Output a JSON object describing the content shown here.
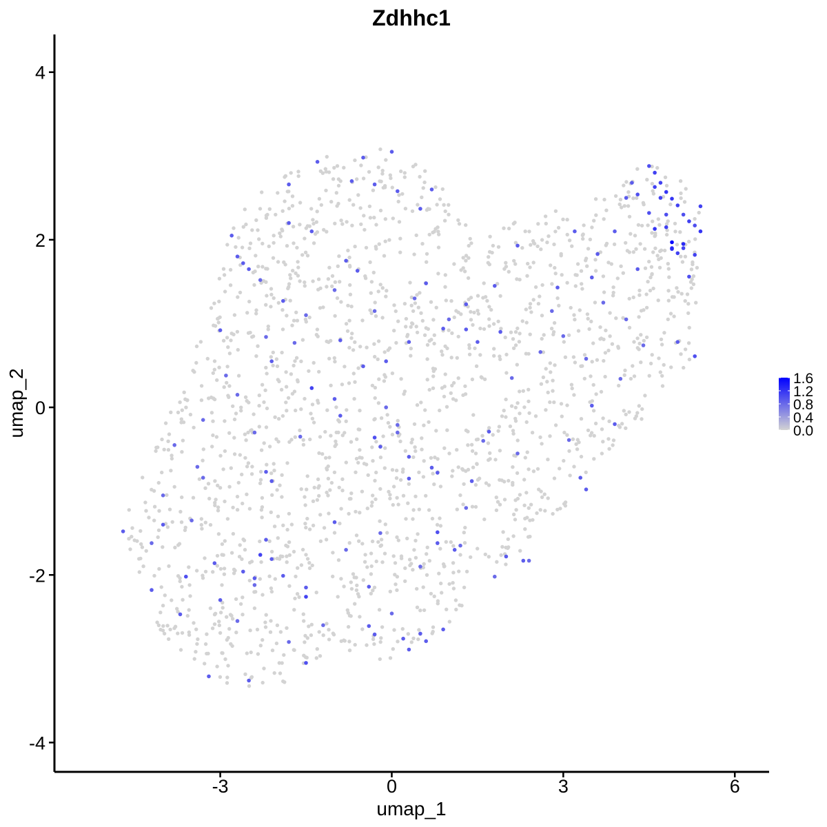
{
  "chart_data": {
    "type": "scatter",
    "title": "Zdhhc1",
    "xlabel": "umap_1",
    "ylabel": "umap_2",
    "xlim": [
      -5.9,
      6.6
    ],
    "ylim": [
      -4.35,
      4.45
    ],
    "x_ticks": [
      -3,
      0,
      3,
      6
    ],
    "y_ticks": [
      -4,
      -2,
      0,
      2,
      4
    ],
    "x_tick_labels": [
      "-3",
      "0",
      "3",
      "6"
    ],
    "y_tick_labels": [
      "-4",
      "-2",
      "0",
      "2",
      "4"
    ],
    "grid": false,
    "legend": {
      "position": "right",
      "type": "colorbar",
      "min": 0.0,
      "max": 1.6,
      "ticks": [
        0.0,
        0.4,
        0.8,
        1.2,
        1.6
      ],
      "tick_labels": [
        "0.0",
        "0.4",
        "0.8",
        "1.2",
        "1.6"
      ],
      "color_low": "#d3d3d3",
      "color_high": "#0000ff"
    },
    "colors": {
      "low": "#d3d3d3",
      "high": "#0000ff"
    },
    "expressed_points": [
      [
        -4.7,
        -1.48,
        0.9
      ],
      [
        -4.2,
        -2.18,
        0.9
      ],
      [
        -3.6,
        -2.02,
        1.0
      ],
      [
        -3.7,
        -2.47,
        0.9
      ],
      [
        -3.2,
        -3.21,
        0.9
      ],
      [
        -3.4,
        -0.71,
        0.8
      ],
      [
        -3.3,
        -0.84,
        0.8
      ],
      [
        -3.1,
        -1.86,
        0.9
      ],
      [
        -2.6,
        -1.96,
        0.9
      ],
      [
        -2.3,
        -1.76,
        1.1
      ],
      [
        -2.2,
        -1.58,
        0.9
      ],
      [
        -2.1,
        -1.81,
        0.9
      ],
      [
        -2.4,
        -2.04,
        0.9
      ],
      [
        -2.4,
        -2.12,
        0.8
      ],
      [
        -2.5,
        -3.26,
        0.9
      ],
      [
        -1.5,
        -2.26,
        1.1
      ],
      [
        -1.5,
        -2.15,
        0.9
      ],
      [
        -1.5,
        -3.05,
        1.0
      ],
      [
        -1.9,
        -2.01,
        0.9
      ],
      [
        -3.0,
        0.92,
        0.9
      ],
      [
        -2.9,
        0.38,
        0.8
      ],
      [
        -2.8,
        2.05,
        0.9
      ],
      [
        -2.7,
        1.8,
        0.9
      ],
      [
        -2.6,
        1.72,
        0.9
      ],
      [
        -2.5,
        1.65,
        0.9
      ],
      [
        -2.3,
        1.52,
        0.8
      ],
      [
        -2.2,
        0.84,
        0.8
      ],
      [
        -2.1,
        0.55,
        0.9
      ],
      [
        -1.9,
        1.27,
        0.9
      ],
      [
        -1.8,
        2.2,
        0.9
      ],
      [
        -1.8,
        2.66,
        0.9
      ],
      [
        -1.7,
        0.77,
        0.8
      ],
      [
        -1.4,
        2.1,
        0.9
      ],
      [
        -1.4,
        0.23,
        1.1
      ],
      [
        -1.3,
        2.93,
        0.9
      ],
      [
        -0.9,
        0.8,
        0.9
      ],
      [
        -0.8,
        1.75,
        0.9
      ],
      [
        -0.7,
        2.7,
        0.9
      ],
      [
        -0.5,
        2.98,
        0.9
      ],
      [
        -0.3,
        2.66,
        0.9
      ],
      [
        -0.1,
        0.55,
        0.9
      ],
      [
        0.0,
        3.05,
        0.9
      ],
      [
        0.1,
        2.58,
        0.9
      ],
      [
        0.3,
        0.78,
        0.9
      ],
      [
        0.5,
        2.37,
        0.9
      ],
      [
        0.6,
        1.48,
        0.9
      ],
      [
        0.7,
        2.6,
        0.9
      ],
      [
        0.9,
        0.94,
        0.9
      ],
      [
        1.3,
        1.23,
        0.9
      ],
      [
        1.3,
        0.93,
        0.9
      ],
      [
        1.5,
        0.78,
        0.9
      ],
      [
        1.9,
        0.9,
        0.9
      ],
      [
        1.8,
        1.45,
        0.9
      ],
      [
        2.2,
        1.93,
        0.9
      ],
      [
        2.9,
        1.43,
        0.9
      ],
      [
        3.2,
        2.1,
        0.9
      ],
      [
        3.5,
        1.55,
        0.9
      ],
      [
        3.6,
        1.83,
        0.9
      ],
      [
        3.9,
        2.1,
        0.9
      ],
      [
        4.1,
        2.5,
        0.9
      ],
      [
        4.2,
        2.68,
        0.9
      ],
      [
        4.3,
        2.54,
        1.0
      ],
      [
        4.5,
        2.88,
        1.0
      ],
      [
        4.5,
        2.32,
        1.0
      ],
      [
        4.6,
        2.8,
        1.1
      ],
      [
        4.6,
        2.13,
        1.2
      ],
      [
        4.6,
        2.63,
        1.1
      ],
      [
        4.7,
        2.68,
        1.1
      ],
      [
        4.7,
        2.5,
        1.1
      ],
      [
        4.8,
        2.3,
        1.0
      ],
      [
        4.8,
        2.15,
        1.1
      ],
      [
        4.8,
        2.57,
        1.2
      ],
      [
        4.9,
        1.97,
        1.6
      ],
      [
        4.9,
        1.9,
        1.3
      ],
      [
        4.9,
        2.49,
        1.2
      ],
      [
        4.9,
        1.89,
        1.2
      ],
      [
        5.0,
        2.41,
        1.1
      ],
      [
        5.0,
        1.84,
        1.1
      ],
      [
        5.1,
        1.95,
        1.3
      ],
      [
        5.1,
        2.3,
        1.0
      ],
      [
        5.1,
        1.9,
        1.1
      ],
      [
        5.2,
        2.22,
        1.1
      ],
      [
        5.2,
        1.56,
        1.0
      ],
      [
        5.3,
        2.17,
        1.0
      ],
      [
        5.3,
        1.82,
        1.1
      ],
      [
        5.4,
        2.4,
        1.1
      ],
      [
        5.4,
        2.1,
        1.2
      ],
      [
        5.3,
        0.61,
        1.0
      ],
      [
        5.0,
        0.78,
        0.9
      ],
      [
        3.5,
        0.02,
        0.9
      ],
      [
        3.9,
        -0.2,
        0.9
      ],
      [
        3.1,
        -0.39,
        0.8
      ],
      [
        3.3,
        -0.84,
        0.9
      ],
      [
        3.4,
        -0.98,
        0.9
      ],
      [
        2.3,
        -1.83,
        0.9
      ],
      [
        2.4,
        -1.83,
        0.8
      ],
      [
        2.0,
        -1.78,
        0.9
      ],
      [
        1.8,
        -2.02,
        0.8
      ],
      [
        1.2,
        -1.65,
        0.8
      ],
      [
        1.1,
        -1.7,
        0.9
      ],
      [
        0.8,
        -1.49,
        1.0
      ],
      [
        0.8,
        -1.62,
        0.9
      ],
      [
        0.8,
        -0.78,
        0.9
      ],
      [
        0.7,
        -0.72,
        0.9
      ],
      [
        0.3,
        -0.85,
        0.9
      ],
      [
        0.3,
        -0.59,
        0.9
      ],
      [
        0.1,
        -0.3,
        0.8
      ],
      [
        0.1,
        -0.21,
        0.8
      ],
      [
        -0.2,
        -0.47,
        0.9
      ],
      [
        -0.3,
        -0.36,
        1.0
      ],
      [
        -0.1,
        0.0,
        0.8
      ],
      [
        -0.5,
        0.49,
        0.9
      ],
      [
        -1.0,
        0.1,
        0.9
      ],
      [
        -0.9,
        -0.1,
        0.9
      ],
      [
        -1.0,
        -1.37,
        0.9
      ],
      [
        -2.1,
        -0.88,
        0.9
      ],
      [
        -2.2,
        -0.77,
        0.9
      ],
      [
        -1.6,
        -0.35,
        0.8
      ],
      [
        -0.4,
        -2.61,
        0.9
      ],
      [
        -0.3,
        -2.71,
        0.9
      ],
      [
        0.2,
        -2.76,
        0.9
      ],
      [
        0.3,
        -2.89,
        0.9
      ],
      [
        0.5,
        -2.7,
        0.9
      ],
      [
        0.6,
        -2.79,
        0.9
      ],
      [
        0.9,
        -2.65,
        0.9
      ],
      [
        -0.4,
        -2.14,
        0.9
      ],
      [
        0.0,
        -2.46,
        0.8
      ],
      [
        1.4,
        -0.88,
        0.9
      ],
      [
        1.6,
        -0.4,
        0.8
      ],
      [
        1.7,
        -0.29,
        0.9
      ],
      [
        -1.5,
        1.1,
        0.8
      ],
      [
        -1.0,
        1.4,
        0.8
      ],
      [
        -0.6,
        1.63,
        0.9
      ],
      [
        -0.3,
        1.15,
        0.8
      ],
      [
        0.4,
        1.3,
        0.8
      ],
      [
        1.0,
        1.05,
        0.8
      ],
      [
        2.1,
        0.35,
        0.8
      ],
      [
        2.6,
        0.66,
        0.8
      ],
      [
        2.8,
        1.15,
        0.8
      ],
      [
        3.0,
        0.85,
        0.8
      ],
      [
        3.7,
        1.25,
        0.8
      ],
      [
        4.1,
        1.05,
        0.8
      ],
      [
        4.3,
        1.65,
        0.9
      ],
      [
        4.4,
        0.74,
        0.8
      ],
      [
        4.0,
        0.34,
        0.8
      ],
      [
        3.4,
        0.58,
        0.8
      ],
      [
        2.2,
        -0.55,
        0.8
      ],
      [
        1.3,
        -1.2,
        0.8
      ],
      [
        0.5,
        -1.9,
        0.8
      ],
      [
        -0.2,
        -1.5,
        0.8
      ],
      [
        -0.8,
        -1.7,
        0.8
      ],
      [
        -1.2,
        -2.6,
        0.8
      ],
      [
        -1.8,
        -2.8,
        0.8
      ],
      [
        -2.7,
        -2.55,
        0.8
      ],
      [
        -3.0,
        -2.3,
        0.9
      ],
      [
        -3.5,
        -1.35,
        0.8
      ],
      [
        -4.0,
        -1.05,
        0.8
      ],
      [
        -3.8,
        -0.45,
        0.8
      ],
      [
        -3.3,
        -0.15,
        0.8
      ],
      [
        -2.7,
        0.15,
        0.8
      ],
      [
        -2.4,
        -0.3,
        0.8
      ],
      [
        -4.0,
        -1.4,
        0.9
      ],
      [
        -4.2,
        -1.62,
        0.8
      ]
    ],
    "background_points": "1800 grey cells (expression 0.0) filling the region spanning umap_1 -4.8 to 5.4 and umap_2 -3.5 to 3.1"
  }
}
